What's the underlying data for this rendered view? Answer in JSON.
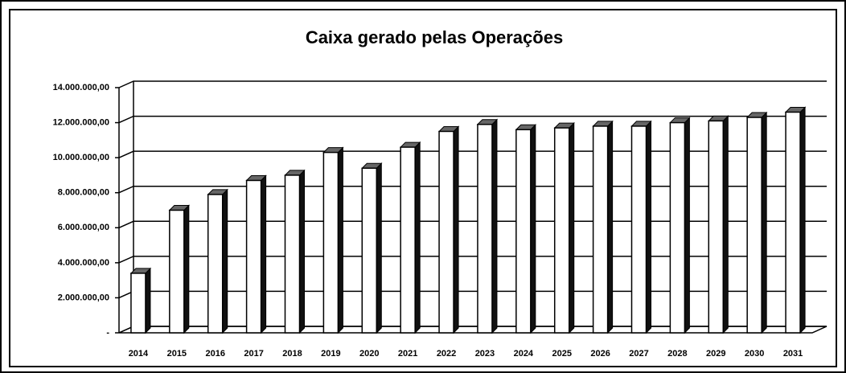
{
  "chart_data": {
    "type": "bar3d",
    "title": "Caixa gerado pelas Operações",
    "categories": [
      "2014",
      "2015",
      "2016",
      "2017",
      "2018",
      "2019",
      "2020",
      "2021",
      "2022",
      "2023",
      "2024",
      "2025",
      "2026",
      "2027",
      "2028",
      "2029",
      "2030",
      "2031"
    ],
    "values": [
      3400000,
      7000000,
      7900000,
      8700000,
      9000000,
      10300000,
      9400000,
      10600000,
      11500000,
      11900000,
      11600000,
      11700000,
      11800000,
      11800000,
      12000000,
      12100000,
      12300000,
      12600000
    ],
    "color": "#ffffff",
    "ylim": [
      0,
      14000000
    ],
    "yticks": [
      {
        "value": 0,
        "label": "-"
      },
      {
        "value": 2000000,
        "label": "2.000.000,00"
      },
      {
        "value": 4000000,
        "label": "4.000.000,00"
      },
      {
        "value": 6000000,
        "label": "6.000.000,00"
      },
      {
        "value": 8000000,
        "label": "8.000.000,00"
      },
      {
        "value": 10000000,
        "label": "10.000.000,00"
      },
      {
        "value": 12000000,
        "label": "12.000.000,00"
      },
      {
        "value": 14000000,
        "label": "14.000.000,00"
      }
    ],
    "grid": true
  }
}
